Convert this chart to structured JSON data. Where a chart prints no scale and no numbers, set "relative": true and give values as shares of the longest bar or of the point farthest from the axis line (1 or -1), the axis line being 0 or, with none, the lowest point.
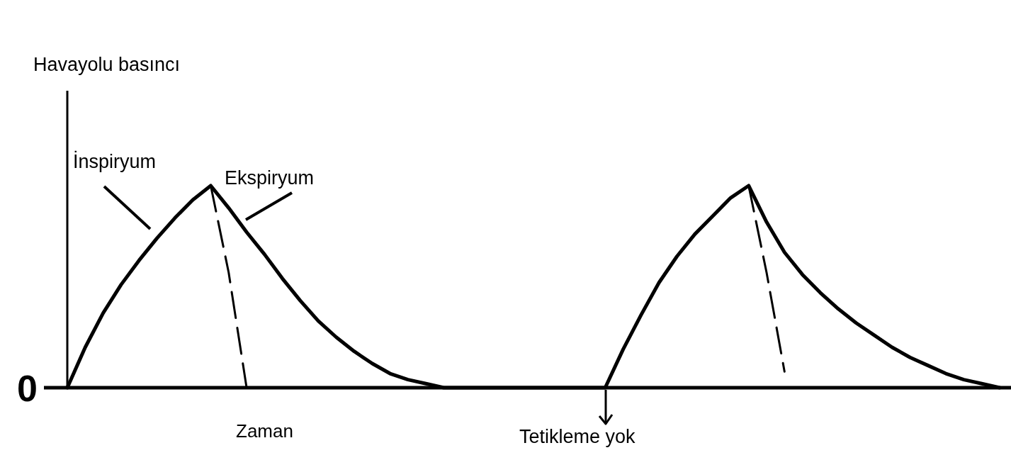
{
  "chart_data": {
    "type": "line",
    "relative": true,
    "xlabel": "Zaman",
    "categories": [
      null,
      null,
      null,
      null,
      null,
      null,
      null,
      null,
      null,
      null,
      null,
      null,
      null,
      null,
      null,
      null,
      null,
      null,
      null,
      null,
      null,
      null,
      null,
      null,
      null,
      null,
      null,
      null,
      null,
      null,
      null,
      null,
      null,
      null,
      null,
      null,
      null,
      null,
      null,
      null,
      null,
      null,
      null,
      null,
      null,
      null,
      null,
      null,
      null,
      null,
      null,
      null,
      null
    ],
    "series": [
      {
        "color": "#000000",
        "values": [
          0,
          0.2,
          0.37,
          0.51,
          0.63,
          0.74,
          0.84,
          0.93,
          1,
          0.89,
          0.77,
          0.66,
          0.54,
          0.43,
          0.33,
          0.25,
          0.18,
          0.12,
          0.07,
          0.04,
          0.02,
          0,
          0,
          0,
          0,
          0,
          0,
          0,
          0,
          0,
          0,
          0.19,
          0.36,
          0.52,
          0.65,
          0.76,
          0.85,
          0.94,
          1,
          0.82,
          0.67,
          0.56,
          0.47,
          0.39,
          0.32,
          0.26,
          0.2,
          0.15,
          0.11,
          0.07,
          0.04,
          0.02,
          0
        ]
      },
      {
        "color": "#000000",
        "line_style": "dashed",
        "values": [
          null,
          null,
          null,
          null,
          null,
          null,
          null,
          null,
          1,
          0.57,
          0,
          null,
          null,
          null,
          null,
          null,
          null,
          null,
          null,
          null,
          null,
          null,
          null,
          null,
          null,
          null,
          null,
          null,
          null,
          null,
          null,
          null,
          null,
          null,
          null,
          null,
          null,
          null,
          1,
          0.57,
          0.08,
          null,
          null,
          null,
          null,
          null,
          null,
          null,
          null,
          null,
          null,
          null,
          null
        ]
      }
    ],
    "annotations": [
      "Havayolu basıncı",
      "İnspiryum",
      "Ekspiryum",
      "Tetikleme yok",
      "0"
    ]
  }
}
